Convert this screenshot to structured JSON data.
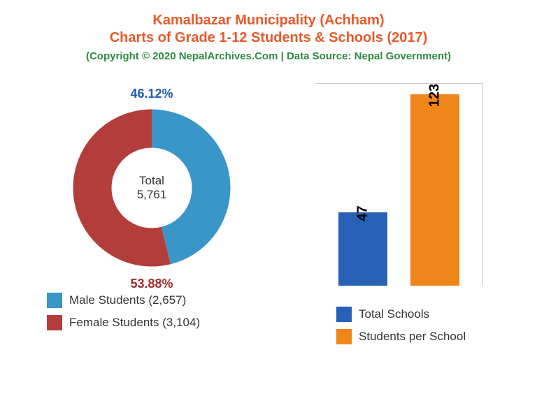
{
  "header": {
    "title_line1": "Kamalbazar Municipality (Achham)",
    "title_line2": "Charts of Grade 1-12 Students & Schools (2017)",
    "title_color": "#e55a2b",
    "copyright": "(Copyright © 2020 NepalArchives.Com | Data Source: Nepal Government)",
    "copyright_color": "#2e8b3e"
  },
  "donut": {
    "type": "donut",
    "center_label": "Total",
    "center_value": "5,761",
    "male": {
      "percent": "46.12%",
      "percent_color": "#1f5fb0",
      "value": 46.12,
      "color": "#3a96c9",
      "legend": "Male Students (2,657)"
    },
    "female": {
      "percent": "53.88%",
      "percent_color": "#9e2b2b",
      "value": 53.88,
      "color": "#b33d3a",
      "legend": "Female Students (3,104)"
    }
  },
  "bar": {
    "type": "bar",
    "ylim": 130,
    "border_color": "#cccccc",
    "schools": {
      "value": 47,
      "label": "47",
      "color": "#2860b5",
      "legend": "Total Schools"
    },
    "students_per_school": {
      "value": 123,
      "label": "123",
      "color": "#f08519",
      "legend": "Students per School"
    }
  }
}
